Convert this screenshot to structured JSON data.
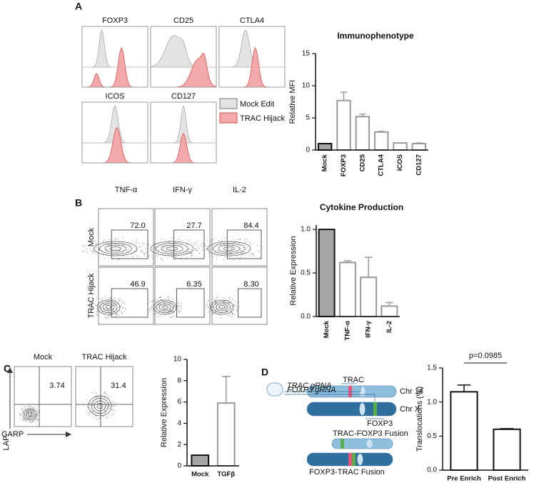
{
  "panel_labels": [
    "A",
    "B",
    "C",
    "D"
  ],
  "histograms": {
    "titles": [
      "FOXP3",
      "CD25",
      "CTLA4",
      "ICOS",
      "CD127"
    ],
    "legend": [
      "Mock Edit",
      "TRAC Hijack"
    ]
  },
  "cytokine_flow": {
    "columns": [
      "TNF-α",
      "IFN-γ",
      "IL-2"
    ],
    "rows": [
      "Mock",
      "TRAC Hijack"
    ],
    "gates": [
      [
        "72.0",
        "27.7",
        "84.4"
      ],
      [
        "46.9",
        "6.35",
        "8.30"
      ]
    ]
  },
  "lap_garp": {
    "titles": [
      "Mock",
      "TRAC Hijack"
    ],
    "gates": [
      "3.74",
      "31.4"
    ],
    "y_label": "LAP",
    "x_label": "GARP"
  },
  "diagram": {
    "trac": "TRAC",
    "trac_grna": "TRAC gRNA",
    "foxp3_grna": "FOXP3 gRNA",
    "chr14": "Chr 14",
    "chrx": "Chr X",
    "foxp3": "FOXP3",
    "fusion1": "TRAC-FOXP3 Fusion",
    "fusion2": "FOXP3-TRAC Fusion"
  },
  "chart_data": [
    {
      "type": "bar",
      "title": "Immunophenotype",
      "y_label": "Relative MFI",
      "categories": [
        "Mock",
        "FOXP3",
        "CD25",
        "CTLA4",
        "ICOS",
        "CD127"
      ],
      "values": [
        1.0,
        7.7,
        5.2,
        2.8,
        1.1,
        1.0
      ],
      "errors": [
        null,
        1.3,
        0.4,
        0.1,
        null,
        0.1
      ],
      "colors": [
        "#a6a6a6",
        "#ffffff",
        "#ffffff",
        "#ffffff",
        "#ffffff",
        "#ffffff"
      ],
      "edge_colors": [
        "#111111",
        "#999999",
        "#999999",
        "#999999",
        "#999999",
        "#999999"
      ],
      "ylim": [
        0,
        15
      ],
      "yticks": [
        0,
        5,
        10,
        15
      ]
    },
    {
      "type": "bar",
      "title": "Cytokine Production",
      "y_label": "Relative Expression",
      "categories": [
        "Mock",
        "TNF-α",
        "IFN-γ",
        "IL-2"
      ],
      "values": [
        1.0,
        0.62,
        0.45,
        0.12
      ],
      "errors": [
        null,
        0.02,
        0.23,
        0.04
      ],
      "colors": [
        "#a6a6a6",
        "#ffffff",
        "#ffffff",
        "#ffffff"
      ],
      "edge_colors": [
        "#111111",
        "#999999",
        "#999999",
        "#999999"
      ],
      "ylim": [
        0,
        1.05
      ],
      "yticks": [
        {
          "value": 0,
          "label": "0.0"
        },
        {
          "value": 0.5,
          "label": "0.5"
        },
        {
          "value": 1,
          "label": "1.0"
        }
      ]
    },
    {
      "type": "bar",
      "y_label": "Relative Expression",
      "categories": [
        "Mock",
        "TGFβ"
      ],
      "values": [
        1.0,
        5.9
      ],
      "errors": [
        null,
        2.5
      ],
      "colors": [
        "#a6a6a6",
        "#ffffff"
      ],
      "edge_colors": [
        "#111111",
        "#999999"
      ],
      "ylim": [
        0,
        10
      ],
      "yticks": [
        0,
        2,
        4,
        6,
        8,
        10
      ]
    },
    {
      "type": "bar",
      "y_label": "Translocations (%)",
      "annotation": "p=0.0985",
      "categories": [
        "Pre Enrich",
        "Post Enrich"
      ],
      "values": [
        1.15,
        0.6
      ],
      "errors": [
        0.1,
        0.01
      ],
      "colors": [
        "#ffffff",
        "#ffffff"
      ],
      "edge_colors": [
        "#111111",
        "#111111"
      ],
      "ylim": [
        0,
        1.5
      ],
      "yticks": [
        {
          "value": 0,
          "label": "0.0"
        },
        {
          "value": 0.5,
          "label": "0.5"
        },
        {
          "value": 1,
          "label": "1.0"
        },
        {
          "value": 1.5,
          "label": "1.5"
        }
      ]
    }
  ]
}
